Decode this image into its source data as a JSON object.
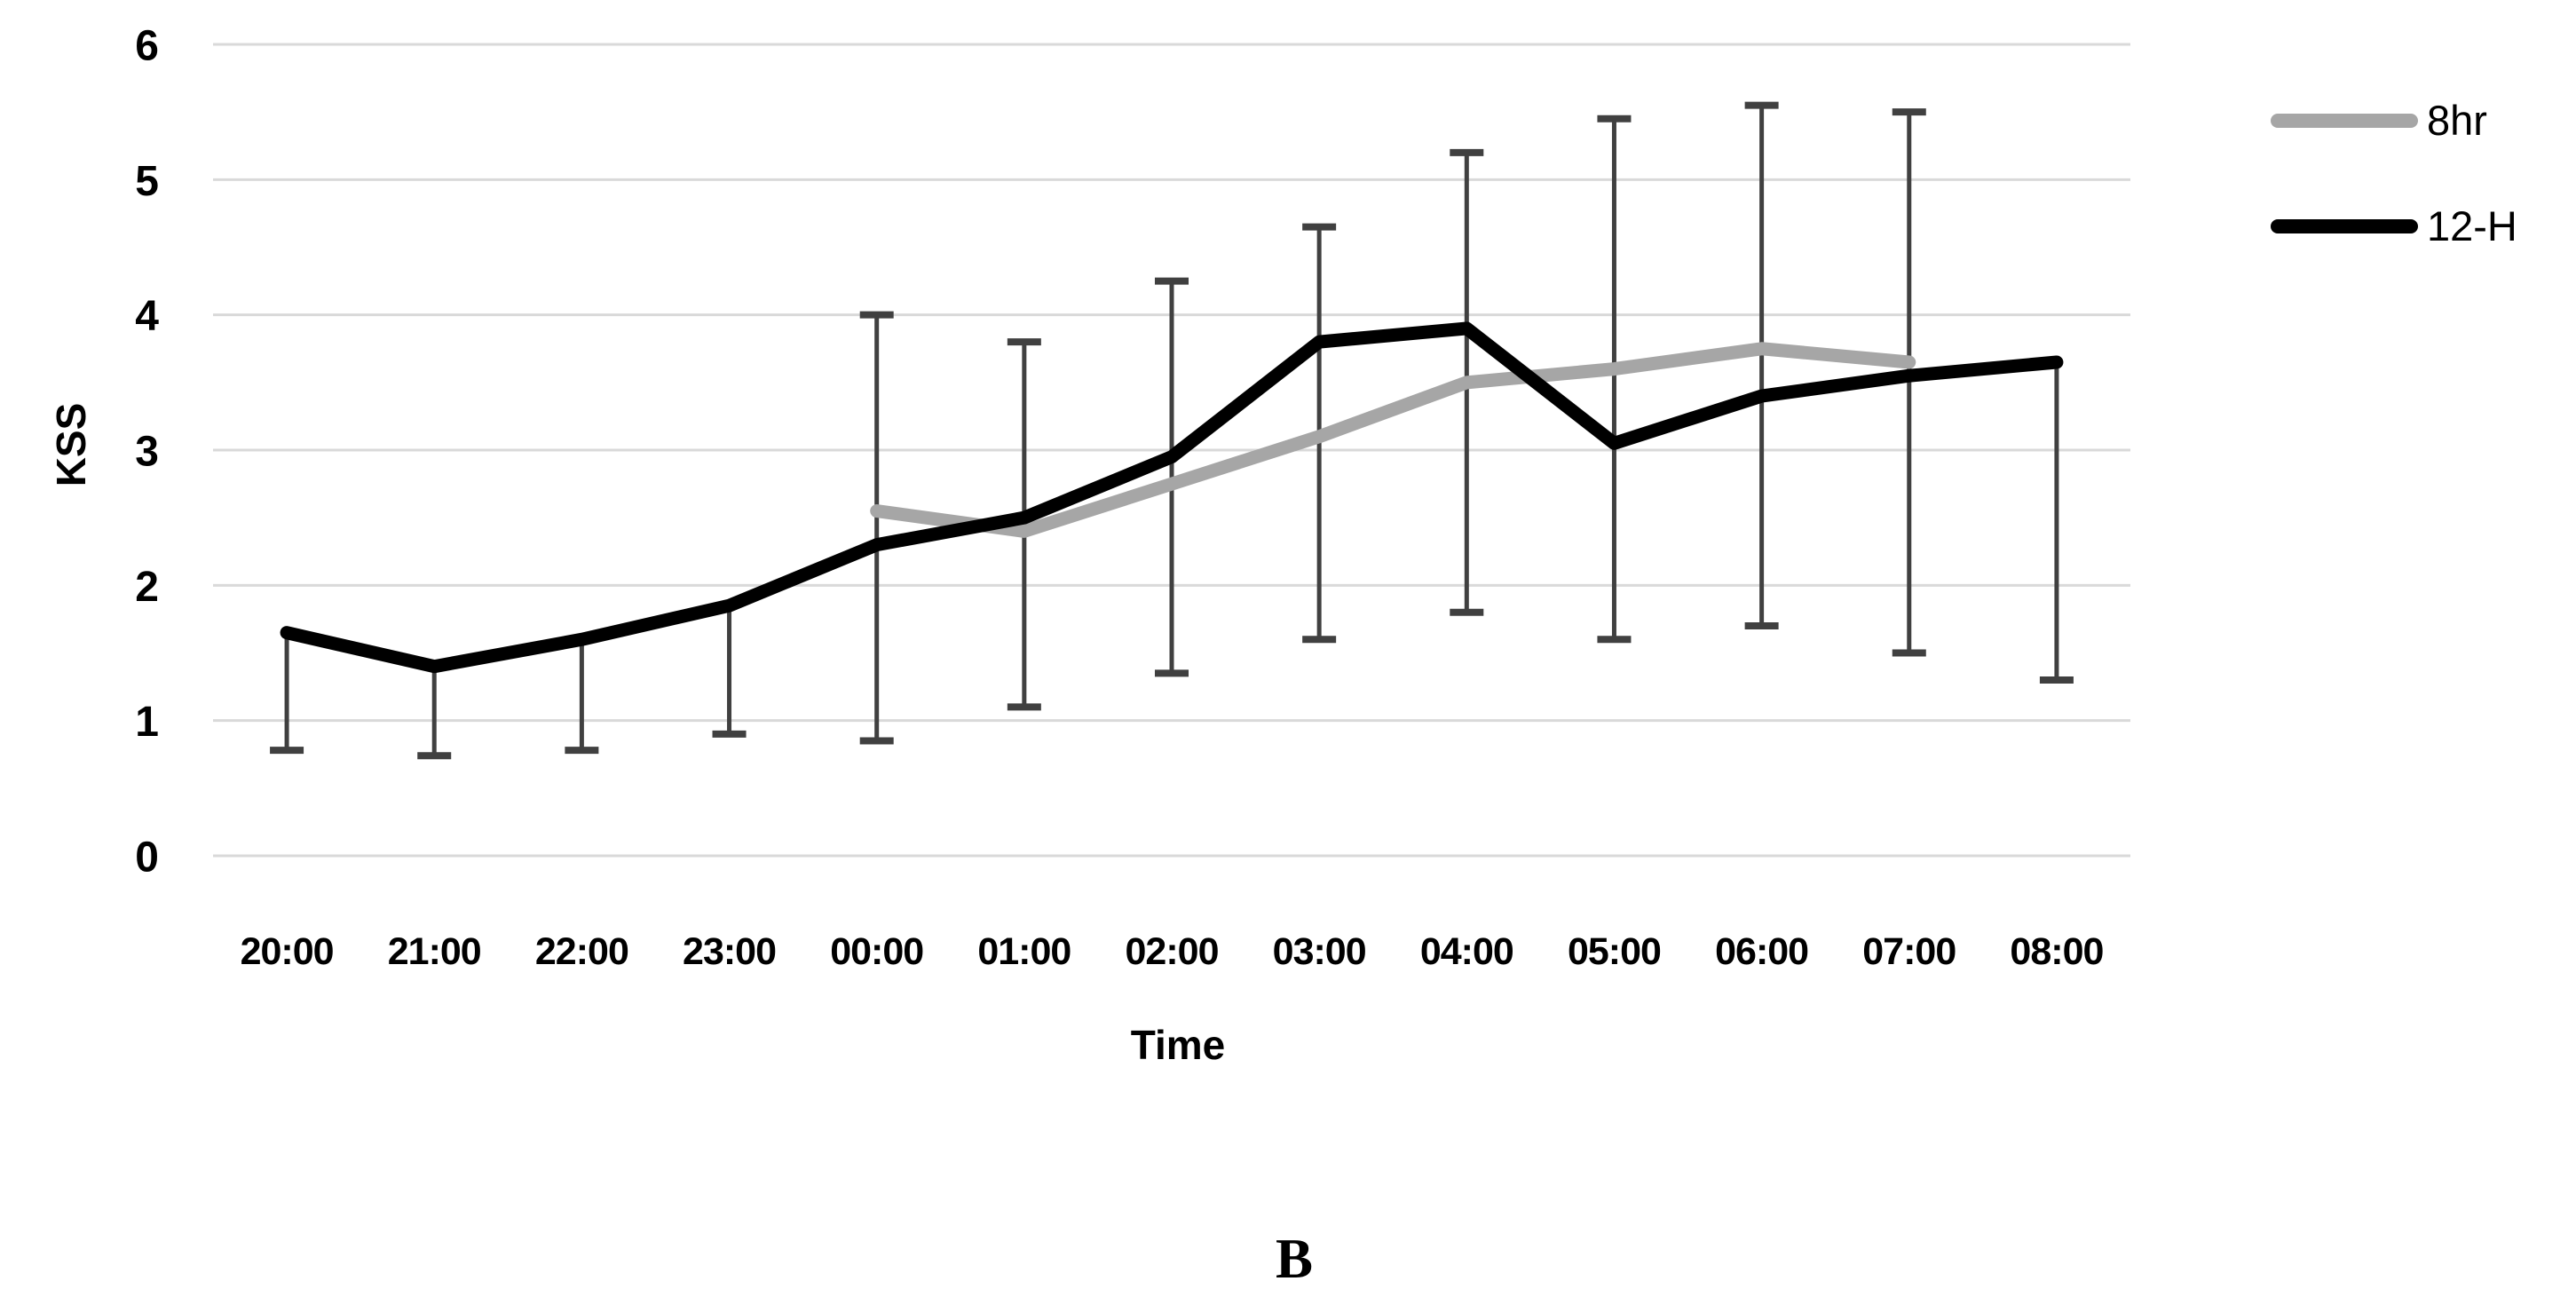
{
  "caption": "B",
  "colors": {
    "background": "#ffffff",
    "gridline": "#d9d9d9",
    "error_bar": "#404040",
    "series_8hr": "#a6a6a6",
    "series_12h": "#000000",
    "text": "#000000"
  },
  "legend": {
    "position": "top-right",
    "items": [
      {
        "label": "8hr",
        "color": "#a6a6a6"
      },
      {
        "label": "12-H",
        "color": "#000000"
      }
    ]
  },
  "chart_data": {
    "type": "line",
    "title": "",
    "xlabel": "Time",
    "ylabel": "KSS",
    "ylim": [
      0,
      6
    ],
    "yticks": [
      0,
      1,
      2,
      3,
      4,
      5,
      6
    ],
    "grid": "horizontal",
    "legend_position": "top-right",
    "categories": [
      "20:00",
      "21:00",
      "22:00",
      "23:00",
      "00:00",
      "01:00",
      "02:00",
      "03:00",
      "04:00",
      "05:00",
      "06:00",
      "07:00",
      "08:00"
    ],
    "series": [
      {
        "name": "8hr",
        "color": "#a6a6a6",
        "stroke_width": 15,
        "values": [
          null,
          null,
          null,
          null,
          2.55,
          2.4,
          2.75,
          3.1,
          3.5,
          3.6,
          3.75,
          3.65,
          null
        ]
      },
      {
        "name": "12-H",
        "color": "#000000",
        "stroke_width": 15,
        "values": [
          1.65,
          1.4,
          1.6,
          1.85,
          2.3,
          2.5,
          2.95,
          3.8,
          3.9,
          3.05,
          3.4,
          3.55,
          3.65
        ]
      }
    ],
    "error_bars": {
      "color": "#404040",
      "points": [
        {
          "category": "20:00",
          "high": 1.65,
          "low": 0.78,
          "cap_high": false,
          "cap_low": true
        },
        {
          "category": "21:00",
          "high": 1.4,
          "low": 0.74,
          "cap_high": false,
          "cap_low": true
        },
        {
          "category": "22:00",
          "high": 1.6,
          "low": 0.78,
          "cap_high": false,
          "cap_low": true
        },
        {
          "category": "23:00",
          "high": 1.85,
          "low": 0.9,
          "cap_high": false,
          "cap_low": true
        },
        {
          "category": "00:00",
          "high": 4.0,
          "low": 0.85,
          "cap_high": true,
          "cap_low": true
        },
        {
          "category": "01:00",
          "high": 3.8,
          "low": 1.1,
          "cap_high": true,
          "cap_low": true
        },
        {
          "category": "02:00",
          "high": 4.25,
          "low": 1.35,
          "cap_high": true,
          "cap_low": true
        },
        {
          "category": "03:00",
          "high": 4.65,
          "low": 1.6,
          "cap_high": true,
          "cap_low": true
        },
        {
          "category": "04:00",
          "high": 5.2,
          "low": 1.8,
          "cap_high": true,
          "cap_low": true
        },
        {
          "category": "05:00",
          "high": 5.45,
          "low": 1.6,
          "cap_high": true,
          "cap_low": true
        },
        {
          "category": "06:00",
          "high": 5.55,
          "low": 1.7,
          "cap_high": true,
          "cap_low": true
        },
        {
          "category": "07:00",
          "high": 5.5,
          "low": 1.5,
          "cap_high": true,
          "cap_low": true
        },
        {
          "category": "08:00",
          "high": 3.65,
          "low": 1.3,
          "cap_high": false,
          "cap_low": true
        }
      ]
    }
  }
}
